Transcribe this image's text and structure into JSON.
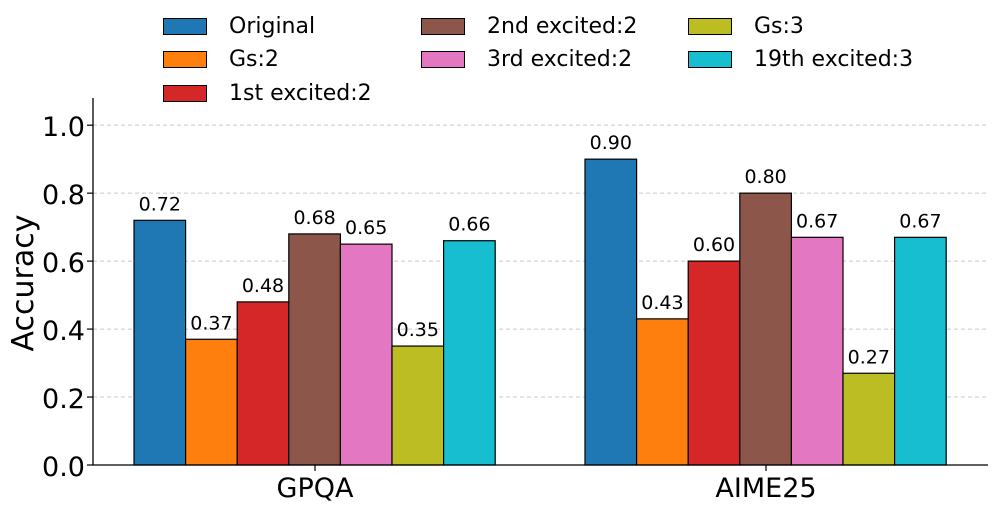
{
  "chart_data": {
    "type": "bar",
    "title": "",
    "xlabel": "",
    "ylabel": "Accuracy",
    "ylim": [
      0,
      1.08
    ],
    "yticks": [
      "0.0",
      "0.2",
      "0.4",
      "0.6",
      "0.8",
      "1.0"
    ],
    "grid": "horizontal dashed",
    "legend_position": "top",
    "categories": [
      "GPQA",
      "AIME25"
    ],
    "series": [
      {
        "name": "Original",
        "color": "#1f77b4",
        "values": [
          0.72,
          0.9
        ],
        "labels": [
          "0.72",
          "0.90"
        ]
      },
      {
        "name": "Gs:2",
        "color": "#ff7f0e",
        "values": [
          0.37,
          0.43
        ],
        "labels": [
          "0.37",
          "0.43"
        ]
      },
      {
        "name": "1st excited:2",
        "color": "#d62728",
        "values": [
          0.48,
          0.6
        ],
        "labels": [
          "0.48",
          "0.60"
        ]
      },
      {
        "name": "2nd excited:2",
        "color": "#8c564b",
        "values": [
          0.68,
          0.8
        ],
        "labels": [
          "0.68",
          "0.80"
        ]
      },
      {
        "name": "3rd excited:2",
        "color": "#e377c2",
        "values": [
          0.65,
          0.67
        ],
        "labels": [
          "0.65",
          "0.67"
        ]
      },
      {
        "name": "Gs:3",
        "color": "#bcbd22",
        "values": [
          0.35,
          0.27
        ],
        "labels": [
          "0.35",
          "0.27"
        ]
      },
      {
        "name": "19th excited:3",
        "color": "#17becf",
        "values": [
          0.66,
          0.67
        ],
        "labels": [
          "0.66",
          "0.67"
        ]
      }
    ]
  }
}
